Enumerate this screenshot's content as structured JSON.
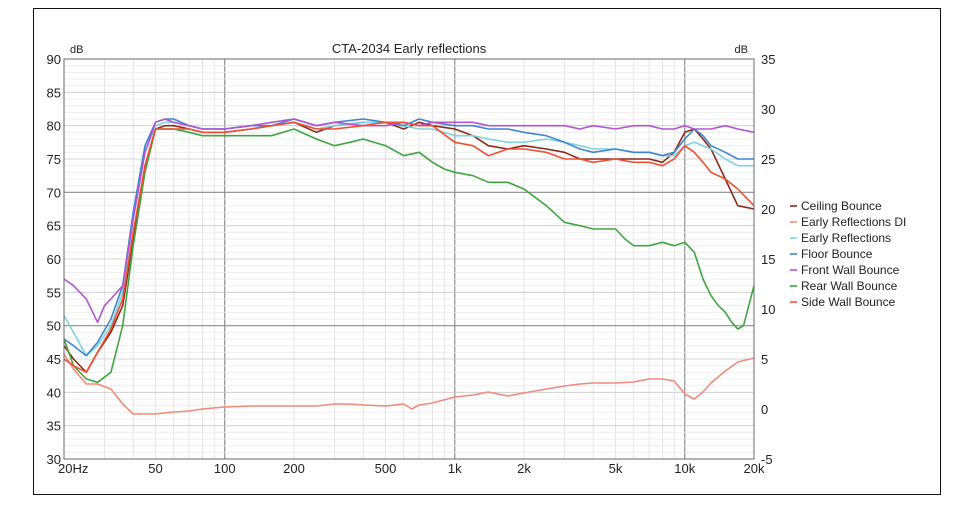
{
  "chart_data": {
    "type": "line",
    "title": "CTA-2034 Early reflections",
    "left_unit": "dB",
    "right_unit": "dB",
    "x_scale": "log",
    "xlim": [
      20,
      20000
    ],
    "ylim_left": [
      30,
      90
    ],
    "ylim_right": [
      -5,
      35
    ],
    "x_tick_values": [
      20,
      50,
      100,
      200,
      500,
      1000,
      2000,
      5000,
      10000,
      20000
    ],
    "x_tick_labels": [
      "20Hz",
      "50",
      "100",
      "200",
      "500",
      "1k",
      "2k",
      "5k",
      "10k",
      "20k"
    ],
    "y_left_ticks": [
      30,
      35,
      40,
      45,
      50,
      55,
      60,
      65,
      70,
      75,
      80,
      85,
      90
    ],
    "y_right_ticks": [
      -5,
      0,
      5,
      10,
      15,
      20,
      25,
      30,
      35
    ],
    "grid": true,
    "legend_position": "right",
    "series": [
      {
        "name": "Ceiling Bounce",
        "color": "#8b2a1a",
        "axis": "left",
        "x": [
          20,
          22,
          25,
          28,
          32,
          36,
          40,
          45,
          50,
          55,
          60,
          70,
          80,
          100,
          130,
          160,
          200,
          250,
          300,
          400,
          500,
          600,
          700,
          800,
          1000,
          1200,
          1400,
          1700,
          2000,
          2500,
          3000,
          3500,
          4000,
          5000,
          6000,
          7000,
          8000,
          9000,
          10000,
          11000,
          12000,
          13000,
          15000,
          17000,
          20000
        ],
        "y": [
          47,
          45,
          43,
          46,
          49,
          53,
          63,
          74,
          79.5,
          80,
          80,
          79.5,
          79,
          79,
          79.5,
          80,
          80.5,
          79,
          80,
          80.5,
          80.5,
          79.5,
          80.5,
          80,
          79.5,
          78.5,
          77,
          76.5,
          77,
          76.5,
          76,
          75,
          75,
          75,
          75,
          75,
          74.5,
          76,
          79,
          79.5,
          78,
          76.5,
          72,
          68,
          67.5
        ]
      },
      {
        "name": "Early Reflections DI",
        "color": "#f08a7a",
        "axis": "right",
        "x": [
          20,
          22,
          25,
          28,
          32,
          36,
          40,
          45,
          50,
          60,
          70,
          80,
          100,
          130,
          160,
          200,
          250,
          300,
          350,
          400,
          500,
          600,
          650,
          700,
          800,
          1000,
          1200,
          1400,
          1700,
          2000,
          2500,
          3000,
          3500,
          4000,
          5000,
          6000,
          7000,
          8000,
          9000,
          10000,
          11000,
          12000,
          13000,
          15000,
          17000,
          20000
        ],
        "y": [
          5.5,
          4,
          2.5,
          2.5,
          2,
          0.5,
          -0.5,
          -0.5,
          -0.5,
          -0.3,
          -0.2,
          0,
          0.2,
          0.3,
          0.3,
          0.3,
          0.3,
          0.5,
          0.5,
          0.4,
          0.3,
          0.5,
          0,
          0.4,
          0.6,
          1.2,
          1.4,
          1.7,
          1.3,
          1.6,
          2,
          2.3,
          2.5,
          2.6,
          2.6,
          2.7,
          3,
          3,
          2.8,
          1.5,
          1,
          1.7,
          2.6,
          3.8,
          4.7,
          5.1
        ]
      },
      {
        "name": "Early Reflections",
        "color": "#7fd3e0",
        "axis": "left",
        "x": [
          20,
          22,
          25,
          28,
          32,
          36,
          40,
          45,
          50,
          55,
          60,
          70,
          80,
          100,
          130,
          160,
          200,
          250,
          300,
          400,
          500,
          600,
          700,
          800,
          1000,
          1200,
          1400,
          1700,
          2000,
          2500,
          3000,
          3500,
          4000,
          5000,
          6000,
          7000,
          8000,
          9000,
          10000,
          11000,
          12000,
          13000,
          15000,
          17000,
          20000
        ],
        "y": [
          51.5,
          49,
          45.5,
          47,
          50,
          55,
          66,
          76,
          80,
          80.5,
          80.5,
          80,
          79.5,
          79.5,
          80,
          80,
          80.5,
          79.5,
          80,
          80.5,
          80.5,
          80,
          79.5,
          79.5,
          78.5,
          78.5,
          78,
          77.5,
          77.5,
          78,
          77.5,
          77,
          76.5,
          76.5,
          76,
          76,
          75.5,
          75.5,
          77,
          77.5,
          77,
          76.5,
          75,
          74,
          74
        ]
      },
      {
        "name": "Floor Bounce",
        "color": "#3f86cf",
        "axis": "left",
        "x": [
          20,
          22,
          25,
          28,
          32,
          36,
          40,
          45,
          50,
          55,
          60,
          70,
          80,
          100,
          130,
          160,
          200,
          250,
          300,
          400,
          500,
          600,
          700,
          800,
          1000,
          1200,
          1400,
          1700,
          2000,
          2500,
          3000,
          3500,
          4000,
          5000,
          6000,
          7000,
          8000,
          9000,
          10000,
          11000,
          12000,
          13000,
          15000,
          17000,
          20000
        ],
        "y": [
          48,
          47,
          45.5,
          47.5,
          51,
          56,
          67,
          77,
          80.5,
          81,
          81,
          80,
          79.5,
          79.5,
          80,
          80,
          81,
          80,
          80.5,
          81,
          80.5,
          80,
          81,
          80.5,
          80,
          80,
          79.5,
          79.5,
          79,
          78.5,
          77.5,
          76.5,
          76,
          76.5,
          76,
          76,
          75.5,
          76,
          78,
          79.5,
          78.5,
          77,
          76,
          75,
          75
        ]
      },
      {
        "name": "Front Wall Bounce",
        "color": "#b455cf",
        "axis": "left",
        "x": [
          20,
          22,
          25,
          28,
          30,
          32,
          36,
          40,
          45,
          50,
          55,
          60,
          70,
          80,
          100,
          130,
          160,
          200,
          250,
          300,
          400,
          500,
          600,
          700,
          800,
          1000,
          1200,
          1400,
          1700,
          2000,
          2500,
          3000,
          3500,
          4000,
          5000,
          6000,
          7000,
          8000,
          9000,
          10000,
          11000,
          12000,
          13000,
          15000,
          17000,
          20000
        ],
        "y": [
          57,
          56,
          54,
          50.5,
          53,
          54,
          56,
          66,
          76,
          80.5,
          81,
          80.5,
          80,
          79.5,
          79.5,
          80,
          80.5,
          81,
          80,
          80.5,
          80,
          80,
          80.5,
          80,
          80.5,
          80.5,
          80.5,
          80,
          80,
          80,
          80,
          80,
          79.5,
          80,
          79.5,
          80,
          80,
          79.5,
          79.5,
          80,
          79.5,
          79.5,
          79.5,
          80,
          79.5,
          79
        ]
      },
      {
        "name": "Rear Wall Bounce",
        "color": "#3fa63f",
        "axis": "left",
        "x": [
          20,
          22,
          25,
          28,
          32,
          36,
          40,
          45,
          50,
          55,
          60,
          70,
          80,
          100,
          130,
          160,
          200,
          250,
          300,
          350,
          400,
          500,
          600,
          700,
          800,
          900,
          1000,
          1200,
          1400,
          1700,
          2000,
          2500,
          3000,
          3500,
          4000,
          4500,
          5000,
          5500,
          6000,
          7000,
          8000,
          9000,
          10000,
          11000,
          12000,
          13000,
          14000,
          15000,
          16000,
          17000,
          18000,
          20000
        ],
        "y": [
          48,
          44,
          42,
          41.5,
          43,
          50,
          62,
          73,
          79.5,
          79.5,
          79.5,
          79,
          78.5,
          78.5,
          78.5,
          78.5,
          79.5,
          78,
          77,
          77.5,
          78,
          77,
          75.5,
          76,
          74.5,
          73.5,
          73,
          72.5,
          71.5,
          71.5,
          70.5,
          68,
          65.5,
          65,
          64.5,
          64.5,
          64.5,
          63,
          62,
          62,
          62.5,
          62,
          62.5,
          61,
          57,
          54.5,
          53,
          52,
          50.5,
          49.5,
          50,
          56
        ]
      },
      {
        "name": "Side Wall Bounce",
        "color": "#ef5035",
        "axis": "left",
        "x": [
          20,
          22,
          25,
          28,
          32,
          36,
          40,
          45,
          50,
          55,
          60,
          70,
          80,
          100,
          130,
          160,
          200,
          250,
          300,
          400,
          500,
          600,
          700,
          800,
          1000,
          1200,
          1400,
          1700,
          2000,
          2500,
          3000,
          3500,
          4000,
          5000,
          6000,
          7000,
          8000,
          9000,
          10000,
          11000,
          12000,
          13000,
          15000,
          17000,
          20000
        ],
        "y": [
          45,
          44,
          43,
          46,
          49.5,
          54,
          64,
          74,
          79.5,
          79.5,
          79.5,
          79.5,
          79,
          79,
          79.5,
          80,
          80.5,
          79.5,
          79.5,
          80,
          80.5,
          80.5,
          80,
          80,
          77.5,
          77,
          75.5,
          76.5,
          76.5,
          76,
          75,
          75,
          74.5,
          75,
          74.5,
          74.5,
          74,
          75,
          77,
          76,
          74.5,
          73,
          72,
          70.5,
          68
        ]
      }
    ]
  }
}
